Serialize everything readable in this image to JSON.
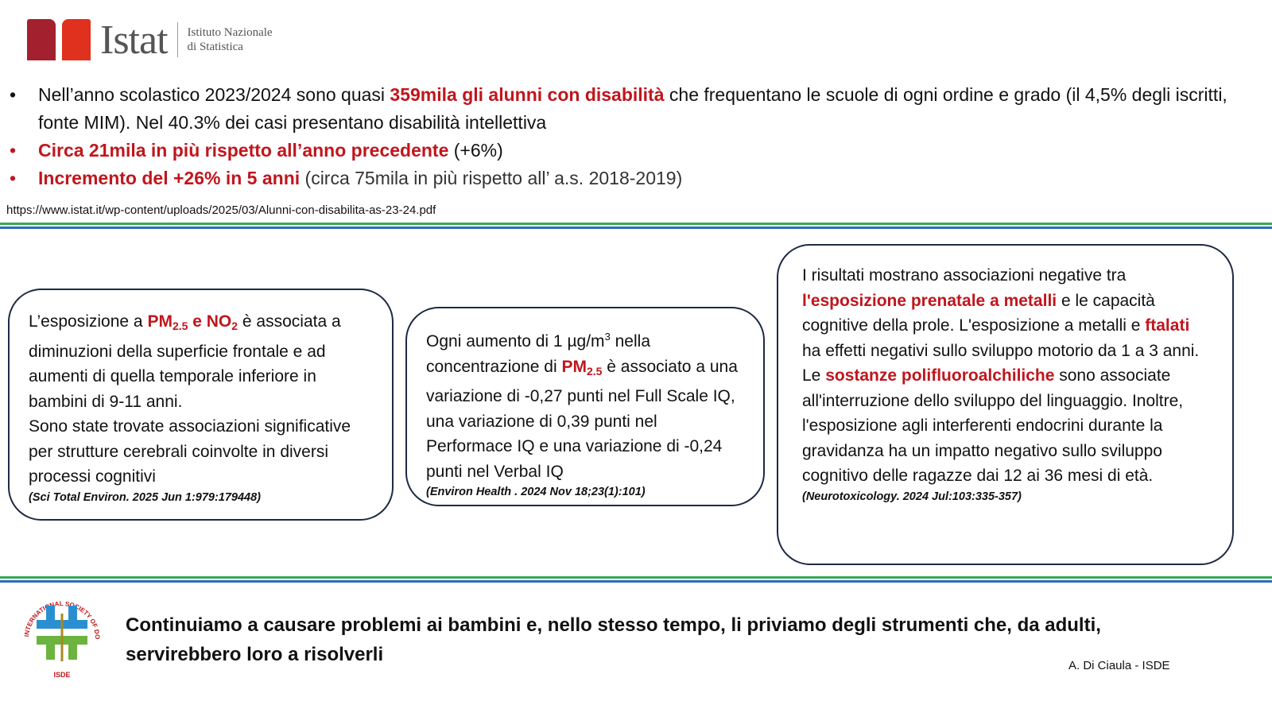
{
  "logo": {
    "name": "Istat",
    "subtitle_line1": "Istituto Nazionale",
    "subtitle_line2": "di Statistica",
    "colors": [
      "#a3202f",
      "#e0301e"
    ]
  },
  "bullets": [
    {
      "pre": "Nell’anno scolastico 2023/2024 sono quasi ",
      "hl": "359mila gli alunni con disabilità",
      "post": " che frequentano le scuole di ogni ordine e grado (il 4,5% degli iscritti, fonte MIM). Nel 40.3% dei casi presentano disabilità intellettiva"
    },
    {
      "pre": "",
      "hl": "Circa 21mila in più rispetto all’anno precedente",
      "post": " (+6%)"
    },
    {
      "pre": "",
      "hl": "Incremento del +26% in 5 anni",
      "post": " (circa 75mila in più rispetto all’ a.s. 2018-2019)"
    }
  ],
  "source_url": "https://www.istat.it/wp-content/uploads/2025/03/Alunni-con-disabilita-as-23-24.pdf",
  "box1": {
    "t1": "L’esposizione a ",
    "pm": "PM",
    "pm_sub": "2.5",
    "and": " e NO",
    "no_sub": "2",
    "t2": " è associata a diminuzioni della superficie frontale e ad aumenti di quella temporale inferiore in bambini di 9-11 anni.",
    "t3": "Sono state trovate associazioni significative per strutture cerebrali coinvolte in diversi processi cognitivi",
    "ref": "(Sci Total Environ. 2025 Jun 1:979:179448)"
  },
  "box2": {
    "t1": "Ogni aumento di 1 µg/m",
    "sup": "3",
    "t2": " nella concentrazione di ",
    "pm": "PM",
    "pm_sub": "2.5",
    "t3": " è associato a una variazione di -0,27 punti nel Full Scale IQ, una variazione di 0,39 punti nel Performace IQ e una variazione di -0,24 punti nel Verbal IQ",
    "ref": "(Environ Health . 2024 Nov 18;23(1):101)"
  },
  "box3": {
    "t1": "I risultati mostrano associazioni negative tra ",
    "h1": "l'esposizione prenatale a metalli",
    "t2": " e le capacità cognitive della prole. L'esposizione a metalli e ",
    "h2": "ftalati",
    "t3": " ha effetti negativi sullo sviluppo motorio da 1 a 3 anni. Le ",
    "h3": "sostanze polifluoroalchiliche",
    "t4": " sono associate all'interruzione dello sviluppo del linguaggio. Inoltre, l'esposizione agli interferenti endocrini durante la gravidanza ha un impatto negativo sullo sviluppo cognitivo delle ragazze dai 12 ai 36 mesi di età.",
    "ref": "(Neurotoxicology. 2024 Jul:103:335-357)"
  },
  "isde_logo": {
    "ring_text": "INTERNATIONAL SOCIETY OF DOCTORS FOR ENVIRONMENT",
    "abbr": "ISDE"
  },
  "footer": "Continuiamo a causare problemi ai bambini e, nello stesso tempo, li priviamo degli strumenti che, da adulti, servirebbero loro a risolverli",
  "author": "A. Di Ciaula - ISDE",
  "colors": {
    "highlight": "#c0161d",
    "line_green": "#3aa655",
    "line_blue": "#2a6db5",
    "box_border": "#1e2a44"
  }
}
